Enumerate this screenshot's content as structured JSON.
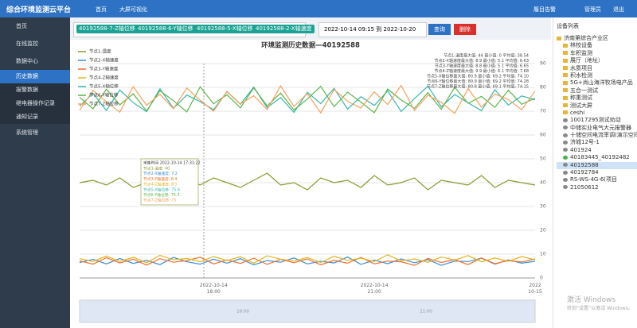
{
  "header": {
    "title": "综合环境监测云平台",
    "nav": [
      "首页",
      "大屏可视化"
    ],
    "right": [
      "履目告警",
      "管理员",
      "退出"
    ]
  },
  "sidebar": {
    "items": [
      "首页",
      "在线监控",
      "数据中心",
      "系统管理"
    ],
    "sub": [
      "历史数据",
      "报警数据",
      "继电器操作记录",
      "通知记录"
    ]
  },
  "filters": {
    "tags": [
      "40192588-7-Z轴位移",
      "40192588-6-Y轴位移",
      "40192588-5-X轴位移",
      "40192588-2-X轴速度"
    ],
    "date_range": "2022-10-14 09:15 到 2022-10-20 09:15",
    "query": "查询",
    "delete": "删除"
  },
  "device_panel": {
    "title": "设备列表",
    "items": [
      "济南第综合产业区",
      "林校设备",
      "车积监测",
      "展厅（地址）",
      "水质项目",
      "积水检测",
      "5G+尚山海洋牧场电产品",
      "五合一测试",
      "称重测试",
      "测试大屏",
      "ceshi",
      "10017295测试劝动",
      "中储实业电气大元报警器",
      "十储空间电流率调(演示空间)",
      "济城12号-1",
      "401924",
      "40183445_40192482",
      "40192588",
      "40192784",
      "RS-WS-4G-6(项目",
      "21050612"
    ]
  },
  "watermark": {
    "line1": "激活 Windows",
    "line2": "转到“设置”以激活 Windows。"
  },
  "chart_data": {
    "type": "line",
    "title": "环境监测历史数据—40192588",
    "categories": [
      null,
      null,
      null,
      null,
      null,
      null,
      null,
      null,
      null,
      null,
      "2022-10-14 18:00",
      null,
      null,
      null,
      null,
      null,
      null,
      null,
      null,
      null,
      null,
      null,
      "2022-10-14 21:00",
      null,
      null,
      null,
      null,
      null,
      null,
      null,
      null,
      null,
      null,
      null,
      "2022 10-15"
    ],
    "series": [
      {
        "name": "节点1-温度",
        "color": "#8a9a2d",
        "values": [
          40,
          41,
          39,
          42,
          38,
          40,
          43,
          37,
          41,
          39,
          42,
          40,
          38,
          41,
          44,
          39,
          40,
          37,
          42,
          40,
          41,
          38,
          43,
          39,
          40,
          42,
          37,
          41,
          40,
          39,
          43,
          38,
          41,
          40,
          39
        ]
      },
      {
        "name": "节点2-X轴速度",
        "color": "#3b8fd8",
        "values": [
          6.5,
          7.8,
          5.9,
          8.2,
          6.1,
          7.4,
          5.6,
          8.6,
          6.8,
          5.8,
          7.9,
          6.2,
          8.1,
          5.5,
          7.3,
          6.6,
          8.4,
          5.9,
          7.0,
          6.3,
          8.8,
          5.7,
          7.5,
          6.0,
          8.0,
          6.4,
          7.7,
          5.3,
          7.1,
          6.9,
          8.3,
          5.8,
          7.6,
          6.2,
          7.0
        ]
      },
      {
        "name": "节点3-Y轴速度",
        "color": "#f06f2c",
        "values": [
          7.2,
          5.8,
          8.5,
          6.3,
          7.9,
          5.4,
          8.1,
          6.6,
          7.3,
          8.7,
          5.9,
          7.6,
          6.1,
          8.3,
          5.7,
          7.8,
          6.4,
          8.0,
          5.5,
          7.4,
          6.2,
          8.6,
          5.9,
          7.1,
          6.8,
          5.3,
          8.2,
          6.5,
          7.7,
          5.6,
          8.4,
          6.0,
          7.3,
          6.7,
          8.0
        ]
      },
      {
        "name": "节点4-Z轴速度",
        "color": "#e0b61d",
        "values": [
          8.1,
          6.9,
          9.2,
          7.0,
          8.7,
          6.4,
          9.5,
          7.6,
          8.2,
          6.8,
          9.0,
          7.3,
          8.9,
          6.2,
          9.3,
          7.9,
          7.1,
          8.6,
          6.5,
          9.1,
          7.4,
          8.3,
          6.9,
          9.7,
          7.2,
          8.0,
          6.6,
          8.8,
          7.5,
          9.4,
          6.8,
          8.4,
          7.0,
          9.0,
          7.7
        ]
      },
      {
        "name": "节点5-X轴位移",
        "color": "#36b5b0",
        "values": [
          72.1,
          77.5,
          70.3,
          78.9,
          73.6,
          69.8,
          79.4,
          71.2,
          76.8,
          74.0,
          70.6,
          78.2,
          72.9,
          80.1,
          71.5,
          75.7,
          69.5,
          77.9,
          73.2,
          79.6,
          70.9,
          76.1,
          72.4,
          78.5,
          69.9,
          75.3,
          80.5,
          71.8,
          77.0,
          73.5,
          70.2,
          79.0,
          72.6,
          76.4,
          74.8
        ]
      },
      {
        "name": "节点6-Y轴位移",
        "color": "#5bb548",
        "values": [
          75.8,
          71.0,
          79.2,
          72.7,
          77.3,
          70.1,
          78.6,
          74.4,
          69.7,
          80.2,
          73.1,
          76.9,
          71.4,
          79.8,
          72.2,
          77.6,
          70.5,
          75.1,
          80.4,
          71.9,
          78.0,
          73.8,
          69.4,
          79.3,
          74.7,
          71.2,
          77.8,
          70.8,
          80.0,
          73.3,
          76.2,
          71.6,
          78.8,
          72.9,
          75.5
        ]
      },
      {
        "name": "节点7-Z轴位移",
        "color": "#f5a15b",
        "values": [
          70.4,
          78.7,
          73.9,
          69.6,
          80.3,
          72.5,
          77.1,
          71.0,
          79.7,
          74.6,
          70.0,
          78.3,
          73.0,
          76.5,
          70.7,
          80.6,
          72.0,
          77.4,
          69.3,
          79.1,
          74.2,
          71.3,
          78.1,
          72.8,
          80.8,
          70.3,
          76.7,
          73.7,
          69.1,
          79.5,
          71.7,
          77.2,
          74.9,
          70.6,
          78.4
        ]
      }
    ],
    "ylim": [
      0,
      90
    ],
    "yticks": [
      0,
      10,
      20,
      30,
      40,
      50,
      60,
      70,
      80,
      90
    ],
    "grid": true,
    "legend": "top-left",
    "stats": [
      "节点1-温度最大值: 44 最小值: 0 平均值: 38.54",
      "节点2-X轴速度最大值: 8.9 最小值: 5.1 平均值: 6.63",
      "节点3-Y轴速度最大值: 8.8 最小值: 5.1 平均值: 6.65",
      "节点4-Z轴速度最大值: 9.9 最小值: 6.1 平均值: 7.68",
      "节点5-X轴位移最大值: 80.9 最小值: 69.2 平均值: 74.10",
      "节点6-Y轴位移最大值: 80.9 最小值: 69.2 平均值: 74.28",
      "节点7-Z轴位移最大值: 80.8 最小值: 69.1 平均值: 74.15"
    ],
    "tooltip": {
      "title": "采集时间 2022-10-14 17:31:22",
      "lines": [
        "节点1-温度: 40",
        "节点2-X轴速度: 7.2",
        "节点3-Y轴速度: 8.4",
        "节点4-Z轴速度: 8.5",
        "节点5-X轴位移: 75.6",
        "节点6-Y轴位移: 75.3",
        "节点7-Z轴位移: 75"
      ]
    },
    "datazoom_labels": [
      "18:00",
      "21:00"
    ]
  }
}
